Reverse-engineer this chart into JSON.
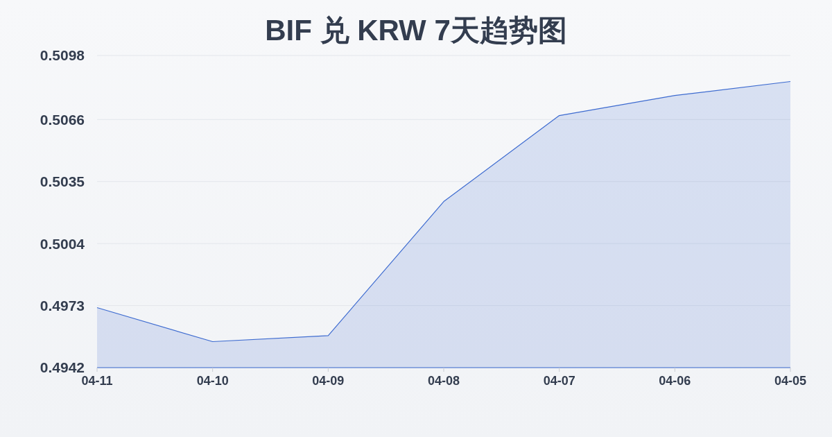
{
  "chart_data": {
    "type": "area",
    "title": "BIF 兑 KRW 7天趋势图",
    "categories": [
      "04-11",
      "04-10",
      "04-09",
      "04-08",
      "04-07",
      "04-06",
      "04-05"
    ],
    "series": [
      {
        "color": "#3d6bd0",
        "values": [
          0.4972,
          0.4955,
          0.4958,
          0.5025,
          0.5068,
          0.5078,
          0.5085
        ]
      }
    ],
    "ylim": [
      0.4942,
      0.5098
    ],
    "yticks": [
      0.4942,
      0.4973,
      0.5004,
      0.5035,
      0.5066,
      0.5098
    ],
    "grid": "y"
  }
}
